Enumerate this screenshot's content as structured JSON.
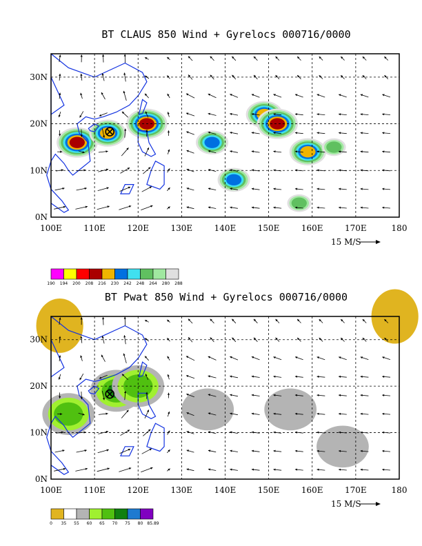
{
  "figure": {
    "panels": [
      {
        "title": "BT CLAUS 850 Wind + Gyrelocs 000716/0000",
        "x_ticks": [
          "100E",
          "110E",
          "120E",
          "130E",
          "140E",
          "150E",
          "160E",
          "170E",
          "180"
        ],
        "y_ticks": [
          "0N",
          "10N",
          "20N",
          "30N"
        ],
        "reference_vector_label": "15 M/S",
        "colorbar": {
          "labels": [
            "190",
            "194",
            "200",
            "208",
            "216",
            "230",
            "242",
            "248",
            "264",
            "280",
            "288"
          ],
          "colors": [
            "#ff00ff",
            "#ffff00",
            "#ff0000",
            "#aa0000",
            "#f0b400",
            "#0070e0",
            "#40e0f0",
            "#60c060",
            "#a0e8a0",
            "#e0e0e0"
          ]
        }
      },
      {
        "title": "BT Pwat 850 Wind + Gyrelocs 000716/0000",
        "x_ticks": [
          "100E",
          "110E",
          "120E",
          "130E",
          "140E",
          "150E",
          "160E",
          "170E",
          "180"
        ],
        "y_ticks": [
          "0N",
          "10N",
          "20N",
          "30N"
        ],
        "reference_vector_label": "15 M/S",
        "colorbar": {
          "labels": [
            "0",
            "35",
            "55",
            "60",
            "65",
            "70",
            "75",
            "80",
            "85.89"
          ],
          "colors": [
            "#e0b420",
            "#ffffff",
            "#b4b4b4",
            "#a0f030",
            "#50c010",
            "#108010",
            "#1e7ad0",
            "#8000c0"
          ]
        }
      }
    ]
  },
  "chart_data": [
    {
      "type": "heatmap",
      "title": "BT CLAUS 850 Wind + Gyrelocs 000716/0000",
      "xlim": [
        100,
        180
      ],
      "ylim": [
        0,
        35
      ],
      "x_ticks": [
        100,
        110,
        120,
        130,
        140,
        150,
        160,
        170,
        180
      ],
      "y_ticks": [
        0,
        10,
        20,
        30
      ],
      "grid": true,
      "colorbar_levels": [
        190,
        194,
        200,
        208,
        216,
        230,
        242,
        248,
        264,
        280,
        288
      ],
      "gyre_center": {
        "lon": 113.5,
        "lat": 18.3
      },
      "cold_cloud_regions": [
        {
          "lon": 106,
          "lat": 16,
          "value": 208
        },
        {
          "lon": 113,
          "lat": 18,
          "value": 216
        },
        {
          "lon": 122,
          "lat": 20,
          "value": 208
        },
        {
          "lon": 137,
          "lat": 16,
          "value": 230
        },
        {
          "lon": 142,
          "lat": 8,
          "value": 230
        },
        {
          "lon": 149,
          "lat": 22,
          "value": 216
        },
        {
          "lon": 152,
          "lat": 20,
          "value": 208
        },
        {
          "lon": 159,
          "lat": 14,
          "value": 216
        },
        {
          "lon": 165,
          "lat": 15,
          "value": 248
        },
        {
          "lon": 157,
          "lat": 3,
          "value": 248
        }
      ],
      "reference_vector": "15 M/S"
    },
    {
      "type": "heatmap",
      "title": "BT Pwat 850 Wind + Gyrelocs 000716/0000",
      "xlim": [
        100,
        180
      ],
      "ylim": [
        0,
        35
      ],
      "x_ticks": [
        100,
        110,
        120,
        130,
        140,
        150,
        160,
        170,
        180
      ],
      "y_ticks": [
        0,
        10,
        20,
        30
      ],
      "grid": true,
      "colorbar_levels": [
        0,
        35,
        55,
        60,
        65,
        70,
        75,
        80,
        85.89
      ],
      "gyre_center": {
        "lon": 113.5,
        "lat": 18.3
      },
      "moisture_regions": [
        {
          "lon": 115,
          "lat": 19,
          "value": 70
        },
        {
          "lon": 120,
          "lat": 20,
          "value": 65
        },
        {
          "lon": 104,
          "lat": 14,
          "value": 65
        },
        {
          "lon": 136,
          "lat": 15,
          "value": 55
        },
        {
          "lon": 155,
          "lat": 15,
          "value": 55
        },
        {
          "lon": 167,
          "lat": 7,
          "value": 55
        },
        {
          "lon": 102,
          "lat": 33,
          "value": 0
        },
        {
          "lon": 179,
          "lat": 35,
          "value": 0
        }
      ],
      "reference_vector": "15 M/S"
    }
  ]
}
